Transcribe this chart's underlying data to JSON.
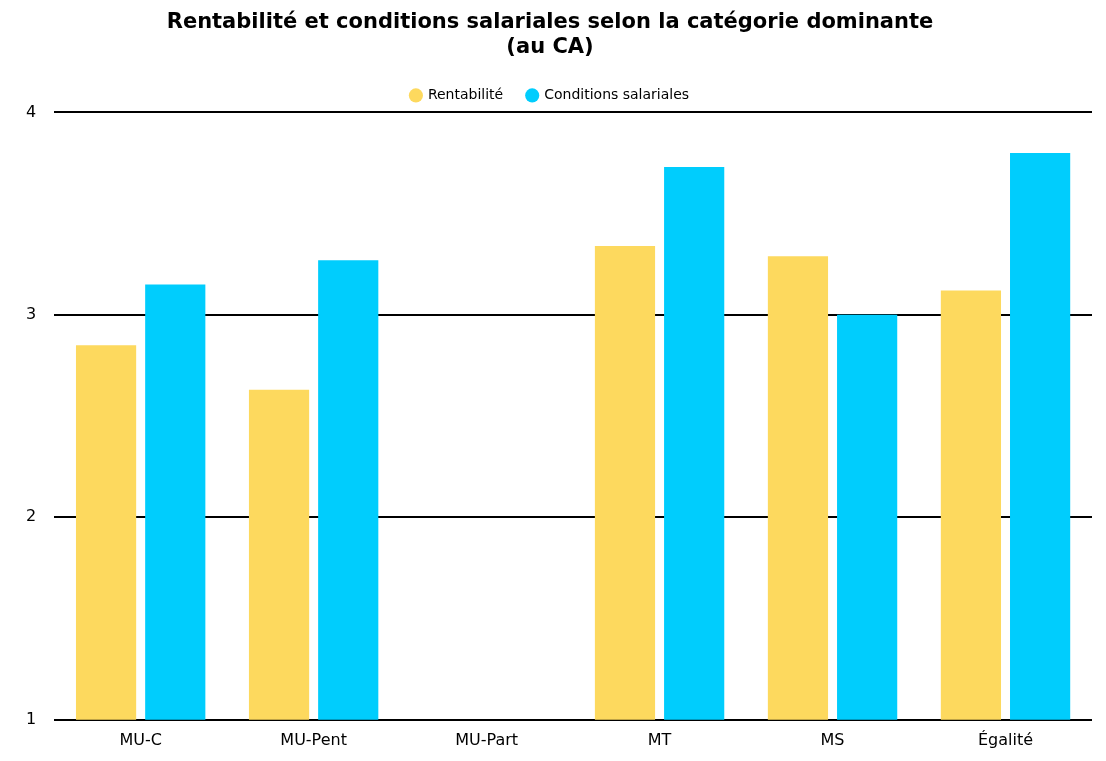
{
  "chart_data": {
    "type": "bar",
    "title": "Rentabilité et conditions salariales selon la catégorie dominante\n(au CA)",
    "categories": [
      "MU-C",
      "MU-Pent",
      "MU-Part",
      "MT",
      "MS",
      "Égalité"
    ],
    "series": [
      {
        "name": "Rentabilité",
        "color": "#fdd95e",
        "values": [
          2.85,
          2.63,
          null,
          3.34,
          3.29,
          3.12
        ]
      },
      {
        "name": "Conditions salariales",
        "color": "#00cdfd",
        "values": [
          3.15,
          3.27,
          null,
          3.73,
          3.0,
          3.8
        ]
      }
    ],
    "ylim": [
      1,
      4
    ],
    "yticks": [
      1,
      2,
      3,
      4
    ],
    "grid": "y",
    "legend": "top",
    "marker": "circle"
  }
}
